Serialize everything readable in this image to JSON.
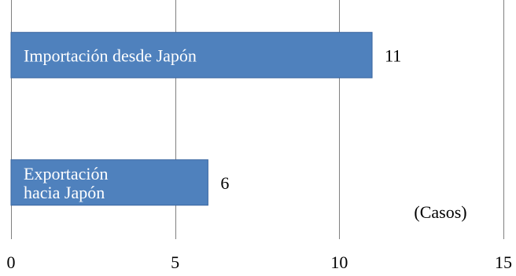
{
  "chart_data": {
    "type": "bar",
    "orientation": "horizontal",
    "categories": [
      "Importación desde Japón",
      "Exportación\nhacia Japón"
    ],
    "values": [
      11,
      6
    ],
    "value_labels": [
      "11",
      "6"
    ],
    "xlim": [
      0,
      15
    ],
    "x_ticks": [
      0,
      5,
      10,
      15
    ],
    "unit_label": "(Casos)",
    "grid": "vertical",
    "bar_color": "#4f81bd",
    "bar_edge_color": "#3a66a0",
    "grid_color": "#808080",
    "title": "",
    "xlabel": "",
    "ylabel": ""
  }
}
